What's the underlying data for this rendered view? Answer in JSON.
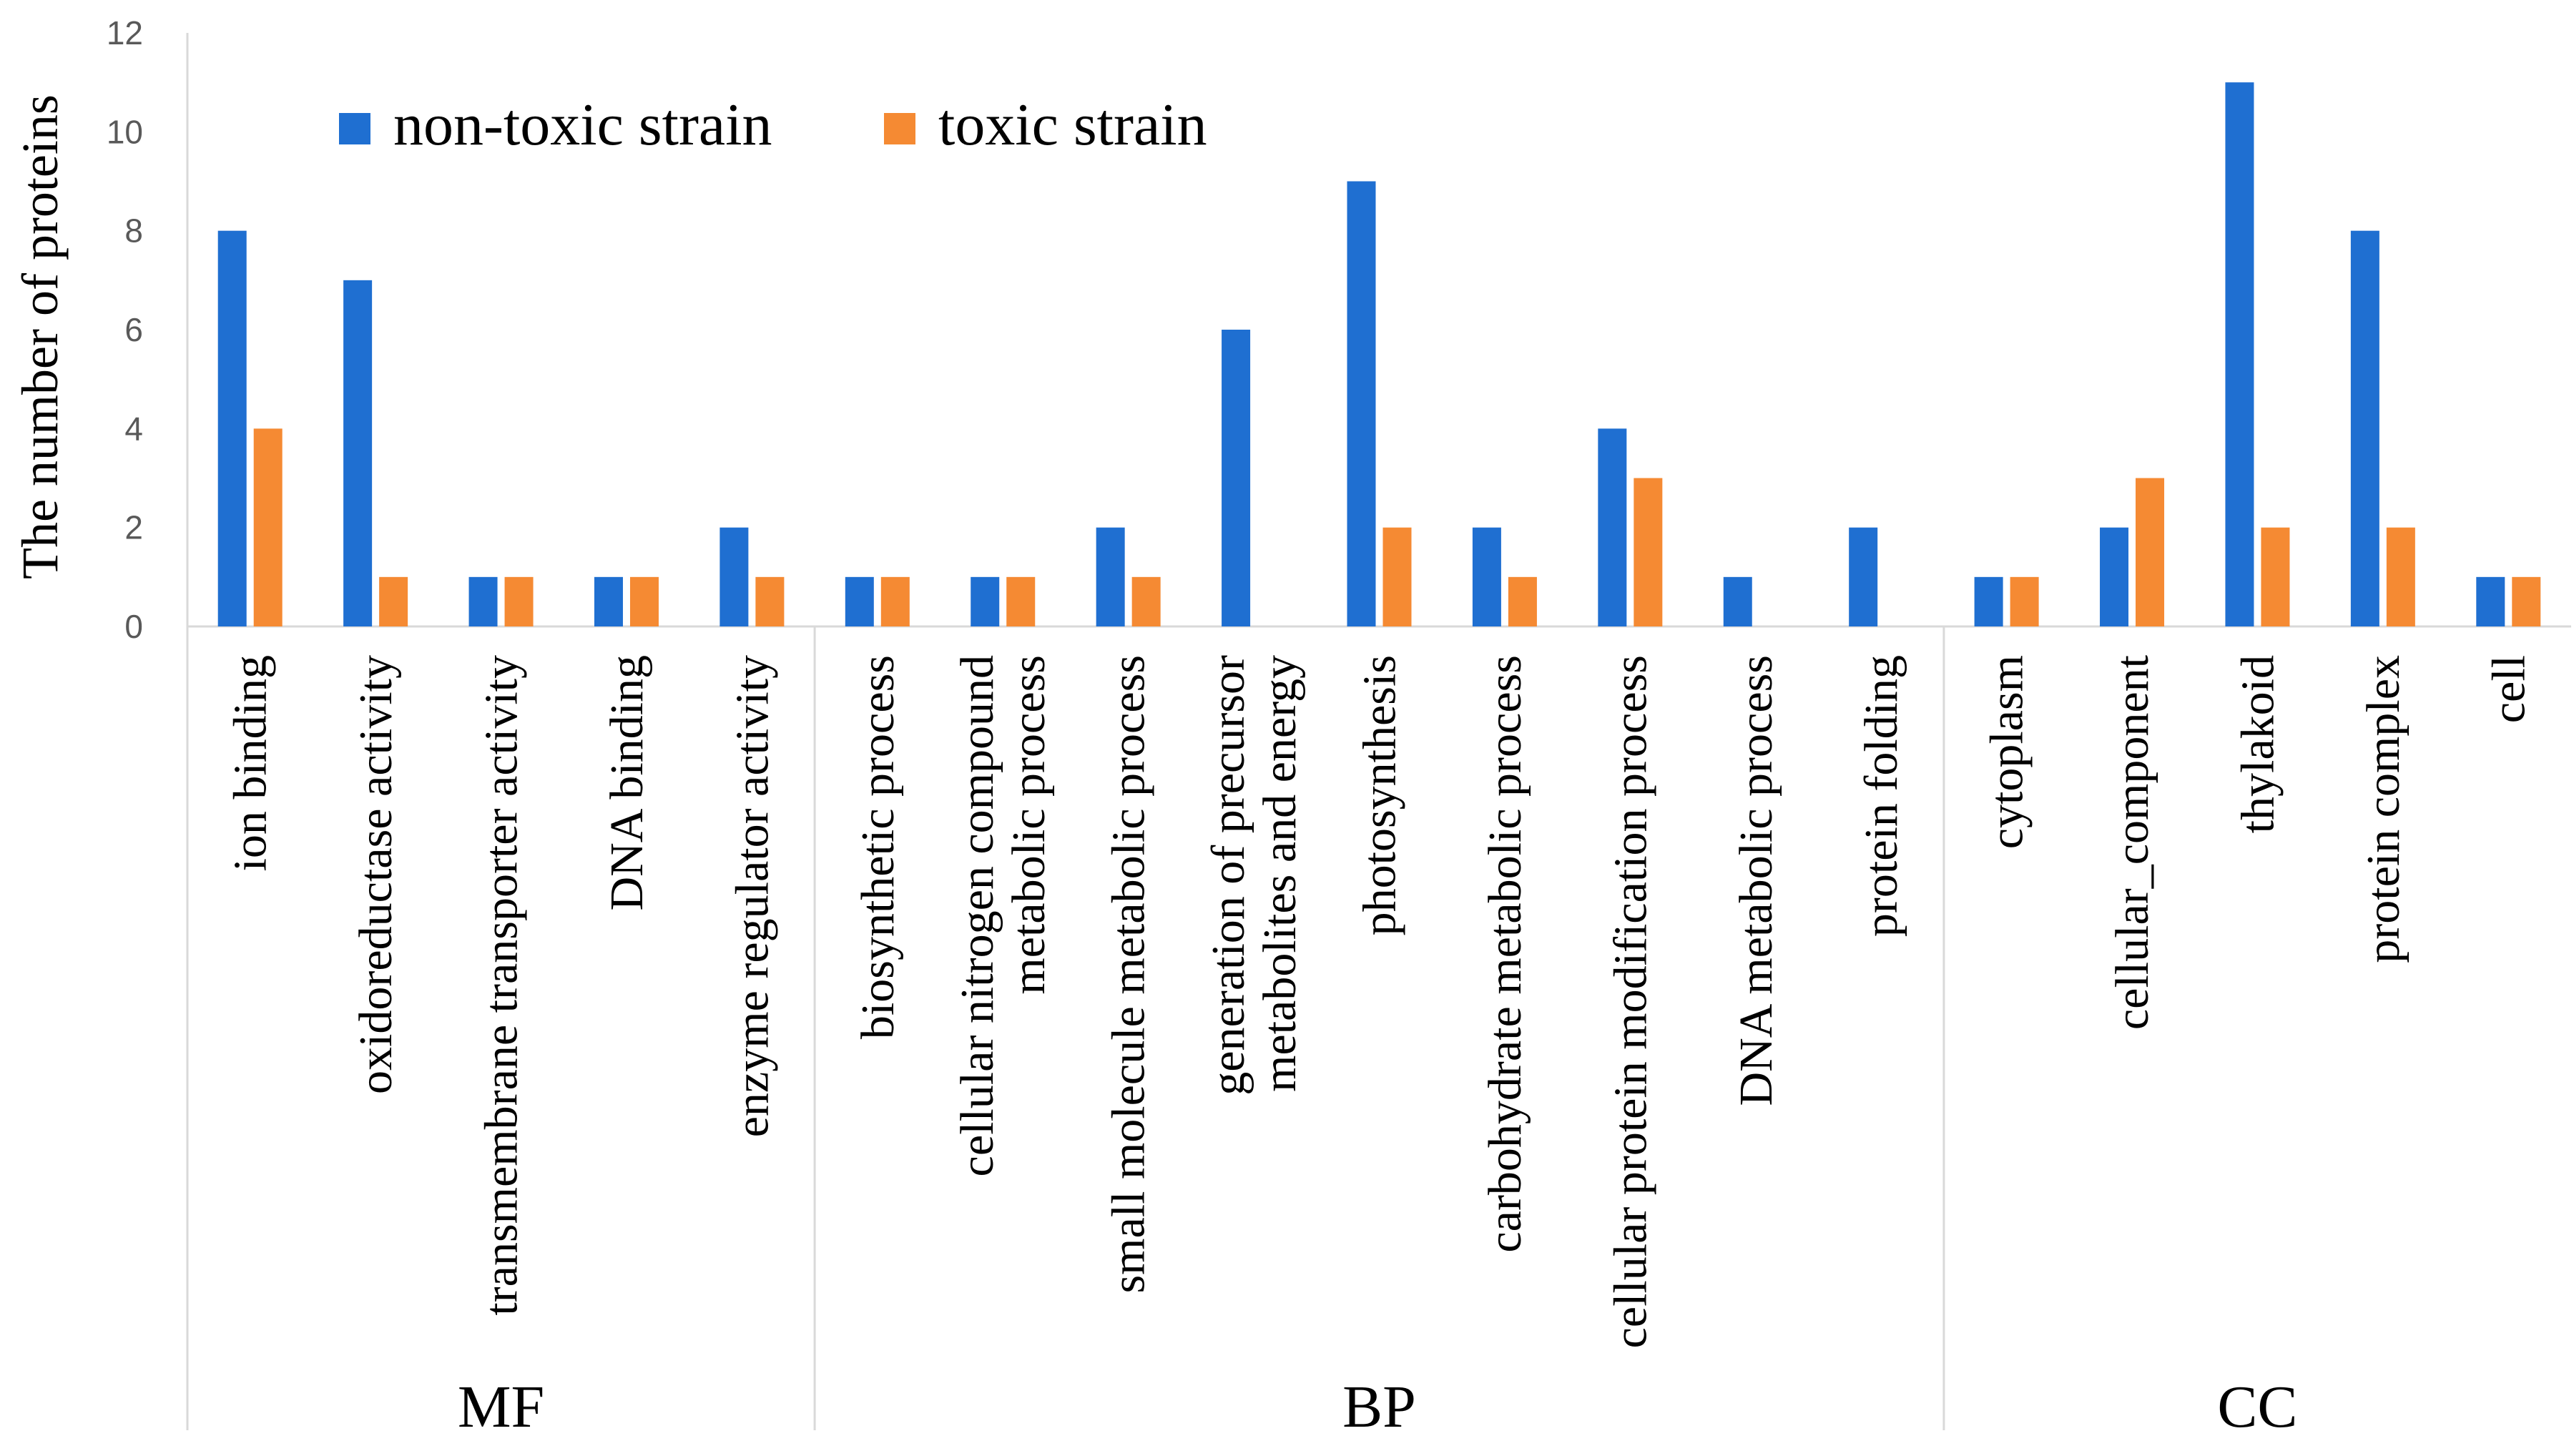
{
  "chart_data": {
    "type": "bar",
    "title": "",
    "ylabel": "The number of proteins",
    "xlabel": "",
    "ylim": [
      0,
      12
    ],
    "yticks": [
      0,
      2,
      4,
      6,
      8,
      10,
      12
    ],
    "grid": false,
    "legend_position": "top-left",
    "categories": [
      "ion binding",
      "oxidoreductase activity",
      "transmembrane transporter activity",
      "DNA binding",
      "enzyme regulator activity",
      "biosynthetic process",
      "cellular nitrogen compound metabolic process",
      "small molecule metabolic process",
      "generation of precursor metabolites and energy",
      "photosynthesis",
      "carbohydrate metabolic process",
      "cellular protein modification process",
      "DNA metabolic process",
      "protein folding",
      "cytoplasm",
      "cellular_component",
      "thylakoid",
      "protein complex",
      "cell"
    ],
    "category_lines": [
      [
        "ion binding"
      ],
      [
        "oxidoreductase activity"
      ],
      [
        "transmembrane transporter activity"
      ],
      [
        "DNA binding"
      ],
      [
        "enzyme regulator activity"
      ],
      [
        "biosynthetic process"
      ],
      [
        "cellular nitrogen compound",
        "metabolic process"
      ],
      [
        "small molecule metabolic process"
      ],
      [
        "generation of precursor",
        "metabolites and energy"
      ],
      [
        "photosynthesis"
      ],
      [
        "carbohydrate metabolic process"
      ],
      [
        "cellular protein modification process"
      ],
      [
        "DNA metabolic process"
      ],
      [
        "protein folding"
      ],
      [
        "cytoplasm"
      ],
      [
        "cellular_component"
      ],
      [
        "thylakoid"
      ],
      [
        "protein complex"
      ],
      [
        "cell"
      ]
    ],
    "groups": [
      {
        "label": "MF",
        "start": 0,
        "end": 4
      },
      {
        "label": "BP",
        "start": 5,
        "end": 13
      },
      {
        "label": "CC",
        "start": 14,
        "end": 18
      }
    ],
    "series": [
      {
        "name": "non-toxic strain",
        "color": "#1f6fd1",
        "values": [
          8,
          7,
          1,
          1,
          2,
          1,
          1,
          2,
          6,
          9,
          2,
          4,
          1,
          2,
          1,
          2,
          11,
          8,
          1
        ]
      },
      {
        "name": "toxic strain",
        "color": "#f58a33",
        "values": [
          4,
          1,
          1,
          1,
          1,
          1,
          1,
          1,
          0,
          2,
          1,
          3,
          0,
          0,
          1,
          3,
          2,
          2,
          1
        ]
      }
    ]
  }
}
